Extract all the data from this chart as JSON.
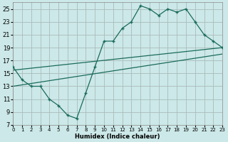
{
  "xlabel": "Humidex (Indice chaleur)",
  "background_color": "#cce8e8",
  "grid_color": "#aabbbb",
  "line_color": "#1a6b5a",
  "xlim": [
    0,
    23
  ],
  "ylim": [
    7,
    26
  ],
  "yticks": [
    7,
    9,
    11,
    13,
    15,
    17,
    19,
    21,
    23,
    25
  ],
  "xticks": [
    0,
    1,
    2,
    3,
    4,
    5,
    6,
    7,
    8,
    9,
    10,
    11,
    12,
    13,
    14,
    15,
    16,
    17,
    18,
    19,
    20,
    21,
    22,
    23
  ],
  "line1_x": [
    0,
    1,
    2,
    3,
    4,
    5,
    6,
    7,
    8,
    9,
    10,
    11,
    12,
    13,
    14,
    15,
    16,
    17,
    18,
    19,
    20,
    21,
    22,
    23
  ],
  "line1_y": [
    16,
    14,
    13,
    13,
    11,
    10,
    8.5,
    8,
    12,
    16,
    20,
    20,
    22,
    23,
    25.5,
    25,
    24,
    25,
    24.5,
    25,
    23,
    21,
    20,
    19
  ],
  "line2_x": [
    0,
    23
  ],
  "line2_y": [
    15.5,
    19
  ],
  "line3_x": [
    0,
    23
  ],
  "line3_y": [
    13,
    18
  ]
}
